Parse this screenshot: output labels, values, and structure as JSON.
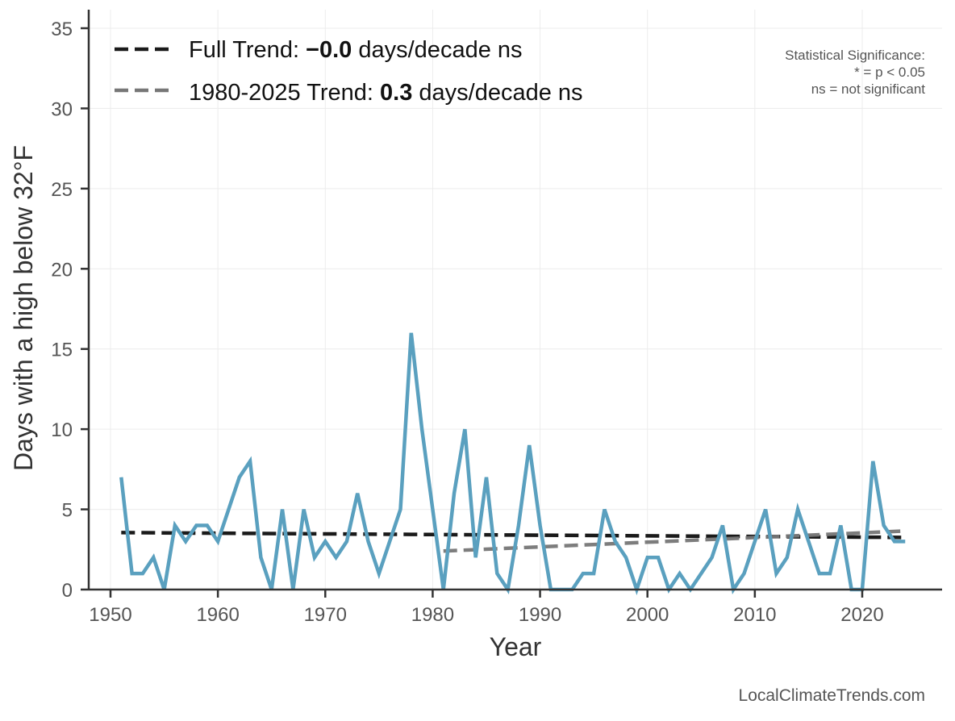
{
  "chart_data": {
    "type": "line",
    "title": "",
    "xlabel": "Year",
    "ylabel": "Days with a high below 32°F",
    "xlim": [
      1947,
      2028
    ],
    "ylim": [
      0,
      36
    ],
    "grid": true,
    "x_ticks": [
      1950,
      1960,
      1970,
      1980,
      1990,
      2000,
      2010,
      2020
    ],
    "y_ticks": [
      0,
      5,
      10,
      15,
      20,
      25,
      30,
      35
    ],
    "series": [
      {
        "name": "Days with a high below 32°F",
        "color": "#5aa0bf",
        "x": [
          1951,
          1952,
          1953,
          1954,
          1955,
          1956,
          1957,
          1958,
          1959,
          1960,
          1961,
          1962,
          1963,
          1964,
          1965,
          1966,
          1967,
          1968,
          1969,
          1970,
          1971,
          1972,
          1973,
          1974,
          1975,
          1976,
          1977,
          1978,
          1979,
          1980,
          1981,
          1982,
          1983,
          1984,
          1985,
          1986,
          1987,
          1988,
          1989,
          1990,
          1991,
          1992,
          1993,
          1994,
          1995,
          1996,
          1997,
          1998,
          1999,
          2000,
          2001,
          2002,
          2003,
          2004,
          2005,
          2006,
          2007,
          2008,
          2009,
          2010,
          2011,
          2012,
          2013,
          2014,
          2015,
          2016,
          2017,
          2018,
          2019,
          2020,
          2021,
          2022,
          2023,
          2024
        ],
        "values": [
          7,
          1,
          1,
          2,
          0,
          4,
          3,
          4,
          4,
          3,
          5,
          7,
          8,
          2,
          0,
          5,
          0,
          5,
          2,
          3,
          2,
          3,
          6,
          3,
          1,
          3,
          5,
          16,
          10,
          5,
          0,
          6,
          10,
          2,
          7,
          1,
          0,
          4,
          9,
          4,
          0,
          0,
          0,
          1,
          1,
          5,
          3,
          2,
          0,
          2,
          2,
          0,
          1,
          0,
          1,
          2,
          4,
          0,
          1,
          3,
          5,
          1,
          2,
          5,
          3,
          1,
          1,
          4,
          0,
          0,
          8,
          4,
          3,
          3
        ]
      }
    ],
    "trends": [
      {
        "name": "Full Trend",
        "color": "#1a1a1a",
        "x": [
          1951,
          2024
        ],
        "values": [
          3.55,
          3.25
        ]
      },
      {
        "name": "1980-2025 Trend",
        "color": "#777777",
        "x": [
          1981,
          2024
        ],
        "values": [
          2.4,
          3.65
        ]
      }
    ],
    "legend": {
      "placement": "top-left",
      "entries": [
        {
          "prefix": "Full Trend: ",
          "value": "−0.0",
          "suffix": " days/decade ns"
        },
        {
          "prefix": "1980-2025 Trend: ",
          "value": "0.3",
          "suffix": " days/decade ns"
        }
      ]
    },
    "annotations": {
      "significance": [
        "Statistical Significance:",
        "* = p < 0.05",
        "ns = not significant"
      ],
      "credit": "LocalClimateTrends.com"
    }
  }
}
